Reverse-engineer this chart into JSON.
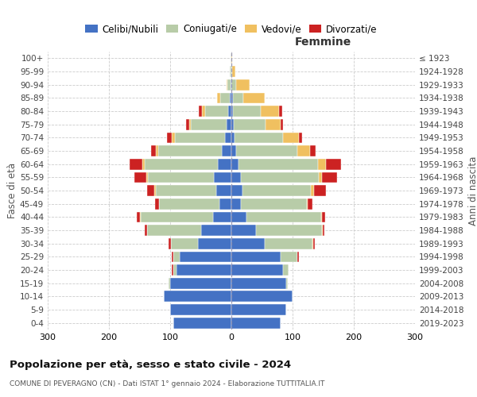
{
  "age_groups": [
    "0-4",
    "5-9",
    "10-14",
    "15-19",
    "20-24",
    "25-29",
    "30-34",
    "35-39",
    "40-44",
    "45-49",
    "50-54",
    "55-59",
    "60-64",
    "65-69",
    "70-74",
    "75-79",
    "80-84",
    "85-89",
    "90-94",
    "95-99",
    "100+"
  ],
  "birth_years": [
    "2019-2023",
    "2014-2018",
    "2009-2013",
    "2004-2008",
    "1999-2003",
    "1994-1998",
    "1989-1993",
    "1984-1988",
    "1979-1983",
    "1974-1978",
    "1969-1973",
    "1964-1968",
    "1959-1963",
    "1954-1958",
    "1949-1953",
    "1944-1948",
    "1939-1943",
    "1934-1938",
    "1929-1933",
    "1924-1928",
    "≤ 1923"
  ],
  "male_celibe": [
    95,
    100,
    110,
    100,
    90,
    85,
    55,
    50,
    30,
    20,
    25,
    28,
    22,
    15,
    10,
    8,
    5,
    3,
    1,
    0,
    0
  ],
  "male_coniugato": [
    0,
    0,
    0,
    2,
    5,
    10,
    44,
    88,
    118,
    98,
    98,
    108,
    120,
    105,
    82,
    58,
    38,
    15,
    5,
    2,
    1
  ],
  "male_vedovo": [
    0,
    0,
    0,
    0,
    0,
    0,
    0,
    0,
    1,
    0,
    3,
    3,
    4,
    3,
    5,
    3,
    5,
    5,
    2,
    0,
    0
  ],
  "male_divorziato": [
    0,
    0,
    0,
    0,
    2,
    2,
    3,
    3,
    5,
    7,
    12,
    20,
    20,
    8,
    8,
    5,
    5,
    0,
    0,
    0,
    0
  ],
  "female_nubile": [
    80,
    90,
    100,
    90,
    85,
    80,
    55,
    40,
    25,
    15,
    18,
    15,
    12,
    8,
    5,
    4,
    3,
    2,
    0,
    0,
    0
  ],
  "female_coniugata": [
    0,
    0,
    0,
    2,
    8,
    28,
    78,
    108,
    122,
    108,
    112,
    128,
    130,
    100,
    80,
    52,
    45,
    18,
    8,
    1,
    0
  ],
  "female_vedova": [
    0,
    0,
    0,
    0,
    0,
    0,
    1,
    1,
    1,
    2,
    5,
    5,
    12,
    20,
    25,
    25,
    30,
    35,
    22,
    6,
    1
  ],
  "female_divorziata": [
    0,
    0,
    0,
    0,
    0,
    2,
    3,
    3,
    5,
    8,
    20,
    25,
    25,
    10,
    5,
    3,
    5,
    0,
    0,
    0,
    0
  ],
  "color_celibe": "#4472C4",
  "color_coniugato": "#B8CCA8",
  "color_vedovo": "#F0C060",
  "color_divorziato": "#CC2222",
  "xlim": 300,
  "title": "Popolazione per età, sesso e stato civile - 2024",
  "subtitle": "COMUNE DI PEVERAGNO (CN) - Dati ISTAT 1° gennaio 2024 - Elaborazione TUTTITALIA.IT",
  "ylabel_left": "Fasce di età",
  "ylabel_right": "Anni di nascita",
  "label_femmine": "Femmine",
  "legend_labels": [
    "Celibi/Nubili",
    "Coniugati/e",
    "Vedovi/e",
    "Divorzati/e"
  ]
}
